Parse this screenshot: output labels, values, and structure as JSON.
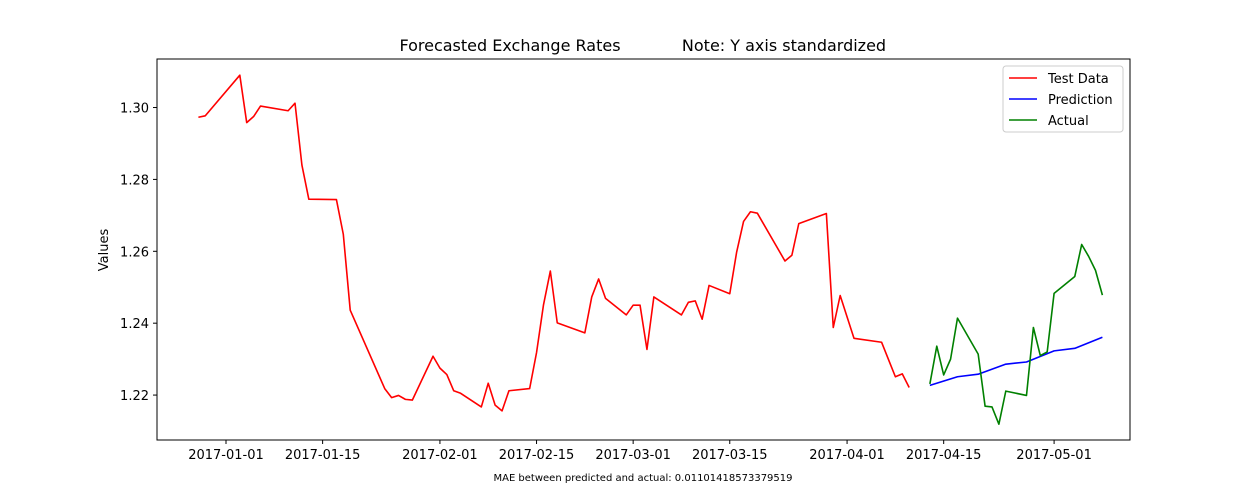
{
  "chart_data": {
    "type": "line",
    "title": "Forecasted Exchange Rates",
    "note": "Note: Y axis standardized",
    "xlabel": "",
    "ylabel": "Values",
    "caption": "MAE between predicted and actual: 0.01101418573379519",
    "x_tick_labels": [
      "2017-01-01",
      "2017-01-15",
      "2017-02-01",
      "2017-02-15",
      "2017-03-01",
      "2017-03-15",
      "2017-04-01",
      "2017-04-15",
      "2017-05-01"
    ],
    "y_ticks": [
      1.22,
      1.24,
      1.26,
      1.28,
      1.3
    ],
    "y_tick_labels": [
      "1.22",
      "1.24",
      "1.26",
      "1.28",
      "1.30"
    ],
    "xlim": [
      "2016-12-22",
      "2017-05-12"
    ],
    "ylim": [
      1.2075,
      1.3135
    ],
    "grid": false,
    "legend_position": "top-right",
    "series": [
      {
        "name": "Test Data",
        "color": "#ff0000",
        "points": [
          [
            "2016-12-28",
            1.2973
          ],
          [
            "2016-12-29",
            1.2977
          ],
          [
            "2017-01-03",
            1.309
          ],
          [
            "2017-01-04",
            1.2958
          ],
          [
            "2017-01-05",
            1.2975
          ],
          [
            "2017-01-06",
            1.3004
          ],
          [
            "2017-01-10",
            1.2991
          ],
          [
            "2017-01-11",
            1.3012
          ],
          [
            "2017-01-12",
            1.284
          ],
          [
            "2017-01-13",
            1.2745
          ],
          [
            "2017-01-17",
            1.2744
          ],
          [
            "2017-01-18",
            1.2647
          ],
          [
            "2017-01-19",
            1.2436
          ],
          [
            "2017-01-24",
            1.2218
          ],
          [
            "2017-01-25",
            1.2193
          ],
          [
            "2017-01-26",
            1.2199
          ],
          [
            "2017-01-27",
            1.2188
          ],
          [
            "2017-01-28",
            1.2186
          ],
          [
            "2017-01-31",
            1.2308
          ],
          [
            "2017-02-01",
            1.2275
          ],
          [
            "2017-02-02",
            1.2257
          ],
          [
            "2017-02-03",
            1.2212
          ],
          [
            "2017-02-04",
            1.2205
          ],
          [
            "2017-02-07",
            1.2167
          ],
          [
            "2017-02-08",
            1.2233
          ],
          [
            "2017-02-09",
            1.2172
          ],
          [
            "2017-02-10",
            1.2156
          ],
          [
            "2017-02-11",
            1.2212
          ],
          [
            "2017-02-14",
            1.2218
          ],
          [
            "2017-02-15",
            1.2318
          ],
          [
            "2017-02-16",
            1.245
          ],
          [
            "2017-02-17",
            1.2545
          ],
          [
            "2017-02-18",
            1.2401
          ],
          [
            "2017-02-22",
            1.2373
          ],
          [
            "2017-02-23",
            1.2473
          ],
          [
            "2017-02-24",
            1.2523
          ],
          [
            "2017-02-25",
            1.2469
          ],
          [
            "2017-02-28",
            1.2423
          ],
          [
            "2017-03-01",
            1.245
          ],
          [
            "2017-03-02",
            1.245
          ],
          [
            "2017-03-03",
            1.2327
          ],
          [
            "2017-03-04",
            1.2473
          ],
          [
            "2017-03-08",
            1.2423
          ],
          [
            "2017-03-09",
            1.2458
          ],
          [
            "2017-03-10",
            1.2462
          ],
          [
            "2017-03-11",
            1.2411
          ],
          [
            "2017-03-12",
            1.2505
          ],
          [
            "2017-03-15",
            1.2482
          ],
          [
            "2017-03-16",
            1.2598
          ],
          [
            "2017-03-17",
            1.2683
          ],
          [
            "2017-03-18",
            1.271
          ],
          [
            "2017-03-19",
            1.2706
          ],
          [
            "2017-03-23",
            1.2573
          ],
          [
            "2017-03-24",
            1.2589
          ],
          [
            "2017-03-25",
            1.2677
          ],
          [
            "2017-03-29",
            1.2705
          ],
          [
            "2017-03-30",
            1.2388
          ],
          [
            "2017-03-31",
            1.2477
          ],
          [
            "2017-04-02",
            1.2358
          ],
          [
            "2017-04-06",
            1.2347
          ],
          [
            "2017-04-08",
            1.2251
          ],
          [
            "2017-04-09",
            1.2259
          ],
          [
            "2017-04-10",
            1.2221
          ]
        ]
      },
      {
        "name": "Prediction",
        "color": "#0000ff",
        "points": [
          [
            "2017-04-13",
            1.2227
          ],
          [
            "2017-04-17",
            1.2251
          ],
          [
            "2017-04-20",
            1.2258
          ],
          [
            "2017-04-24",
            1.2286
          ],
          [
            "2017-04-27",
            1.2292
          ],
          [
            "2017-05-01",
            1.2323
          ],
          [
            "2017-05-04",
            1.233
          ],
          [
            "2017-05-08",
            1.2361
          ]
        ]
      },
      {
        "name": "Actual",
        "color": "#008000",
        "points": [
          [
            "2017-04-13",
            1.2231
          ],
          [
            "2017-04-14",
            1.2336
          ],
          [
            "2017-04-15",
            1.2256
          ],
          [
            "2017-04-16",
            1.23
          ],
          [
            "2017-04-17",
            1.2414
          ],
          [
            "2017-04-20",
            1.2314
          ],
          [
            "2017-04-21",
            1.2169
          ],
          [
            "2017-04-22",
            1.2167
          ],
          [
            "2017-04-23",
            1.2119
          ],
          [
            "2017-04-24",
            1.2211
          ],
          [
            "2017-04-27",
            1.2199
          ],
          [
            "2017-04-28",
            1.2388
          ],
          [
            "2017-04-29",
            1.231
          ],
          [
            "2017-04-30",
            1.232
          ],
          [
            "2017-05-01",
            1.2483
          ],
          [
            "2017-05-04",
            1.253
          ],
          [
            "2017-05-05",
            1.2619
          ],
          [
            "2017-05-06",
            1.2586
          ],
          [
            "2017-05-07",
            1.2547
          ],
          [
            "2017-05-08",
            1.2478
          ]
        ]
      }
    ]
  }
}
